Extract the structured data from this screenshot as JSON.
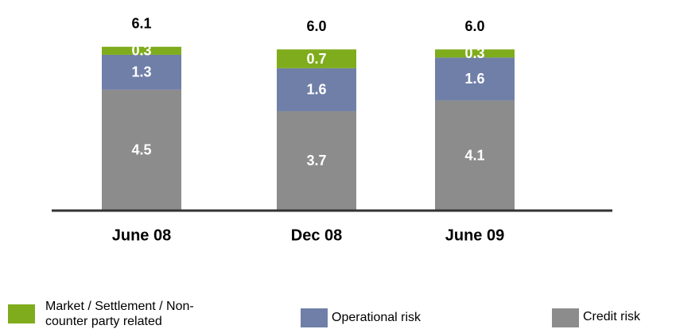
{
  "chart_data": {
    "type": "stacked_bar",
    "categories": [
      "June 08",
      "Dec 08",
      "June 09"
    ],
    "series": [
      {
        "name": "Credit risk",
        "color": "#8c8c8c",
        "values": [
          4.5,
          3.7,
          4.1
        ]
      },
      {
        "name": "Operational risk",
        "color": "#6f7fa8",
        "values": [
          1.3,
          1.6,
          1.6
        ]
      },
      {
        "name": "Market / Settlement / Non-counter party related",
        "color": "#7fac1c",
        "values": [
          0.3,
          0.7,
          0.3
        ]
      }
    ],
    "totals": [
      6.1,
      6.0,
      6.0
    ],
    "total_labels": [
      "6.1",
      "6.0",
      "6.0"
    ]
  }
}
